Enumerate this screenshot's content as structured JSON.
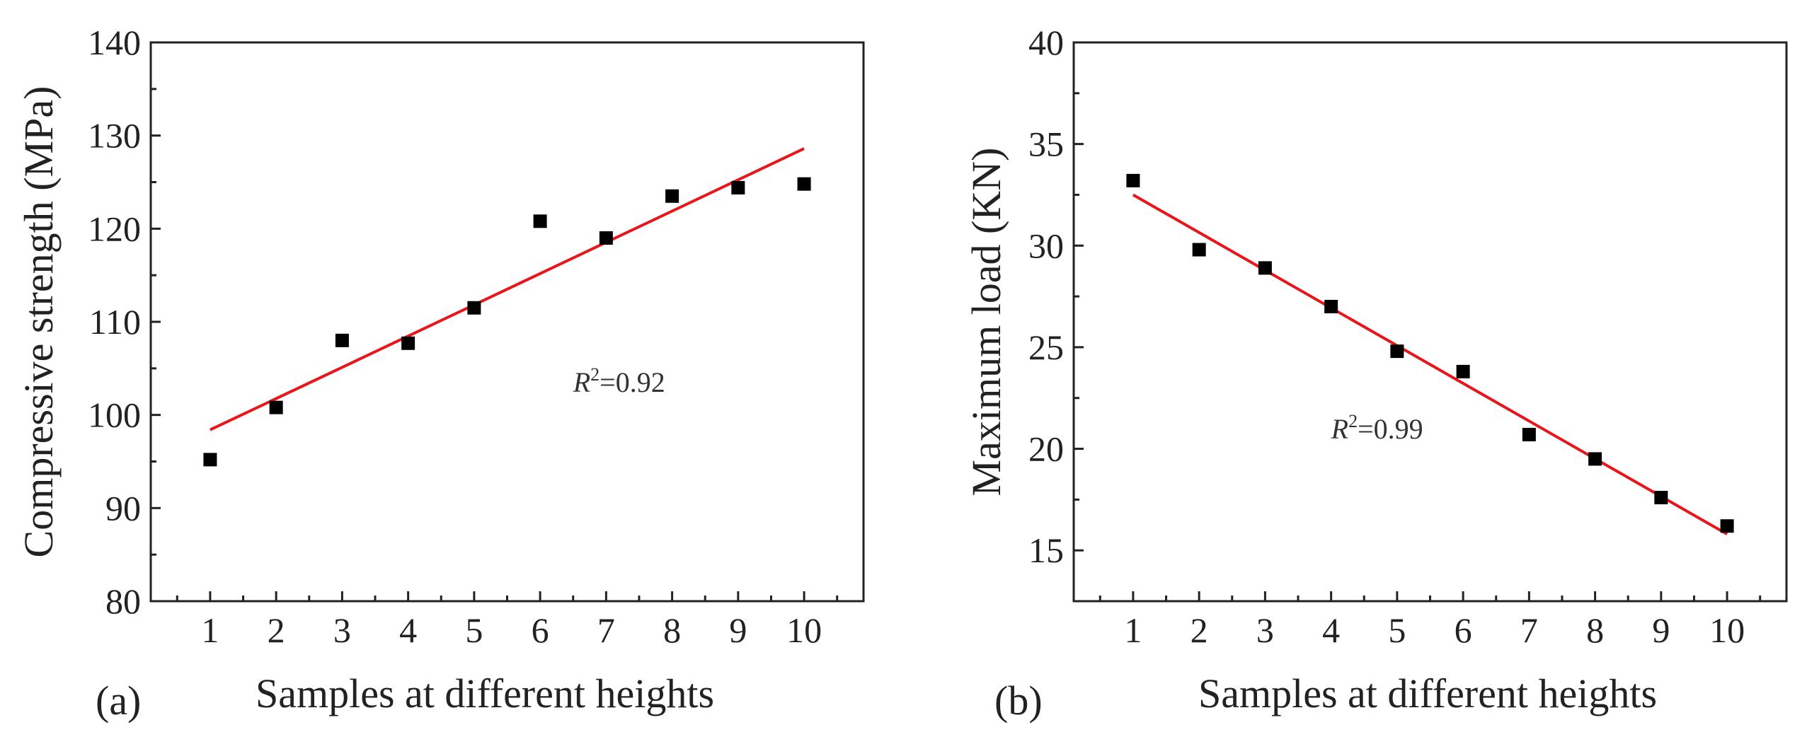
{
  "chart_data": [
    {
      "type": "scatter",
      "panel_label": "(a)",
      "xlabel": "Samples at different heights",
      "ylabel": "Compressive strength (MPa)",
      "xlim": [
        0.1,
        10.9
      ],
      "ylim": [
        80,
        140
      ],
      "xticks": [
        1,
        2,
        3,
        4,
        5,
        6,
        7,
        8,
        9,
        10
      ],
      "yticks": [
        80,
        90,
        100,
        110,
        120,
        130,
        140
      ],
      "x": [
        1,
        2,
        3,
        4,
        5,
        6,
        7,
        8,
        9,
        10
      ],
      "y": [
        95.2,
        100.8,
        108.0,
        107.7,
        111.5,
        120.8,
        119.0,
        123.5,
        124.4,
        124.8
      ],
      "fit_line": {
        "x": [
          1,
          10
        ],
        "y": [
          98.4,
          128.6
        ],
        "color": "#e8161b"
      },
      "annotation": {
        "prefix": "R",
        "sup": "2",
        "value": "=0.92",
        "x": 6.5,
        "y": 102.5
      },
      "marker_color": "#000000",
      "grid": false
    },
    {
      "type": "scatter",
      "panel_label": "(b)",
      "xlabel": "Samples at different heights",
      "ylabel": "Maximum load (KN)",
      "xlim": [
        0.1,
        10.9
      ],
      "ylim": [
        12.5,
        40
      ],
      "xticks": [
        1,
        2,
        3,
        4,
        5,
        6,
        7,
        8,
        9,
        10
      ],
      "yticks": [
        15,
        20,
        25,
        30,
        35,
        40
      ],
      "x": [
        1,
        2,
        3,
        4,
        5,
        6,
        7,
        8,
        9,
        10
      ],
      "y": [
        33.2,
        29.8,
        28.9,
        27.0,
        24.8,
        23.8,
        20.7,
        19.5,
        17.6,
        16.2
      ],
      "fit_line": {
        "x": [
          1,
          10
        ],
        "y": [
          32.5,
          15.8
        ],
        "color": "#e8161b"
      },
      "annotation": {
        "prefix": "R",
        "sup": "2",
        "value": "=0.99",
        "x": 4.0,
        "y": 20.5
      },
      "marker_color": "#000000",
      "grid": false
    }
  ]
}
